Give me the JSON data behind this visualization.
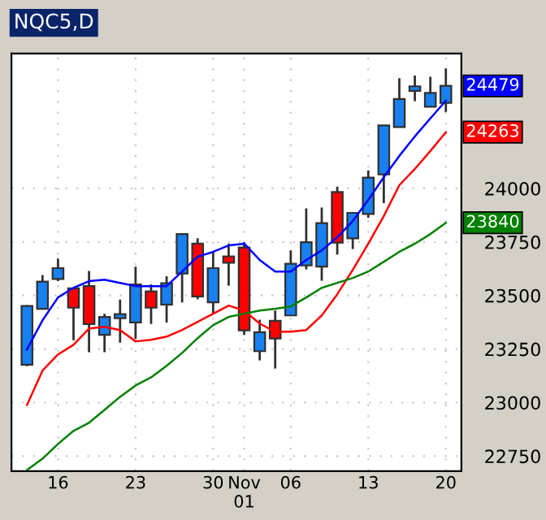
{
  "chart_data": {
    "type": "candlestick",
    "title": "NQC5,D",
    "categories": [
      null,
      null,
      "16",
      null,
      null,
      null,
      null,
      "23",
      null,
      null,
      null,
      null,
      "30",
      null,
      "Nov\n01",
      null,
      null,
      "06",
      null,
      null,
      null,
      null,
      "13",
      null,
      null,
      null,
      null,
      "20"
    ],
    "ohlc": [
      [
        23177,
        23455,
        23170,
        23451
      ],
      [
        23438,
        23596,
        23438,
        23565
      ],
      [
        23577,
        23673,
        23567,
        23628
      ],
      [
        23534,
        23536,
        23291,
        23443
      ],
      [
        23544,
        23615,
        23235,
        23367
      ],
      [
        23316,
        23415,
        23235,
        23400
      ],
      [
        23394,
        23481,
        23280,
        23413
      ],
      [
        23374,
        23635,
        23298,
        23552
      ],
      [
        23519,
        23552,
        23367,
        23443
      ],
      [
        23458,
        23590,
        23374,
        23557
      ],
      [
        23603,
        23790,
        23468,
        23787
      ],
      [
        23742,
        23767,
        23483,
        23496
      ],
      [
        23468,
        23704,
        23417,
        23628
      ],
      [
        23683,
        23742,
        23546,
        23653
      ],
      [
        23724,
        23749,
        23316,
        23337
      ],
      [
        23240,
        23387,
        23197,
        23329
      ],
      [
        23382,
        23430,
        23159,
        23299
      ],
      [
        23407,
        23711,
        23405,
        23648
      ],
      [
        23641,
        23907,
        23622,
        23749
      ],
      [
        23635,
        23911,
        23569,
        23838
      ],
      [
        23983,
        24008,
        23691,
        23747
      ],
      [
        23767,
        23890,
        23717,
        23886
      ],
      [
        23881,
        24084,
        23863,
        24051
      ],
      [
        24066,
        24294,
        23932,
        24294
      ],
      [
        24287,
        24515,
        24287,
        24418
      ],
      [
        24456,
        24527,
        24408,
        24477
      ],
      [
        24382,
        24522,
        24382,
        24446
      ],
      [
        24400,
        24560,
        24357,
        24479
      ]
    ],
    "colors": [
      "#1880f0",
      "#1880f0",
      "#1880f0",
      "#ff0000",
      "#ff0000",
      "#1880f0",
      "#1880f0",
      "#1880f0",
      "#ff0000",
      "#1880f0",
      "#1880f0",
      "#ff0000",
      "#1880f0",
      "#ff0000",
      "#ff0000",
      "#1880f0",
      "#ff0000",
      "#1880f0",
      "#1880f0",
      "#1880f0",
      "#ff0000",
      "#1880f0",
      "#1880f0",
      "#1880f0",
      "#1880f0",
      "#1880f0",
      "#1880f0",
      "#1880f0"
    ],
    "color": "#0000ff",
    "value_labels": [
      null,
      null,
      null,
      null,
      null,
      null,
      null,
      null,
      null,
      null,
      null,
      null,
      null,
      null,
      null,
      null,
      null,
      null,
      null,
      null,
      null,
      null,
      null,
      null,
      null,
      null,
      null,
      "24479"
    ],
    "series": [
      {
        "type": "line",
        "color": "#0000ff",
        "values": [
          23248,
          23384,
          23491,
          23536,
          23567,
          23574,
          23559,
          23544,
          23544,
          23544,
          23612,
          23681,
          23704,
          23734,
          23742,
          23666,
          23612,
          23612,
          23666,
          23711,
          23772,
          23848,
          23947,
          24053,
          24152,
          24243,
          24327,
          24410
        ]
      },
      {
        "type": "line",
        "color": "#ff0000",
        "values": [
          22989,
          23149,
          23225,
          23270,
          23346,
          23354,
          23339,
          23286,
          23293,
          23308,
          23339,
          23377,
          23415,
          23453,
          23430,
          23369,
          23331,
          23331,
          23339,
          23407,
          23506,
          23620,
          23742,
          23871,
          24015,
          24091,
          24175,
          24263
        ],
        "value_labels": [
          null,
          null,
          null,
          null,
          null,
          null,
          null,
          null,
          null,
          null,
          null,
          null,
          null,
          null,
          null,
          null,
          null,
          null,
          null,
          null,
          null,
          null,
          null,
          null,
          null,
          null,
          null,
          "24263"
        ]
      },
      {
        "type": "line",
        "color": "#008000",
        "values": [
          22685,
          22738,
          22807,
          22868,
          22906,
          22966,
          23027,
          23080,
          23118,
          23172,
          23232,
          23301,
          23362,
          23400,
          23415,
          23430,
          23438,
          23449,
          23491,
          23536,
          23559,
          23582,
          23612,
          23658,
          23704,
          23742,
          23787,
          23840
        ],
        "value_labels": [
          null,
          null,
          null,
          null,
          null,
          null,
          null,
          null,
          null,
          null,
          null,
          null,
          null,
          null,
          null,
          null,
          null,
          null,
          null,
          null,
          null,
          null,
          null,
          null,
          null,
          null,
          null,
          "23840"
        ]
      }
    ],
    "ylim": [
      22680,
      24630
    ],
    "yticks": [
      22750,
      23000,
      23250,
      23500,
      23750,
      24000
    ],
    "grid": true
  }
}
